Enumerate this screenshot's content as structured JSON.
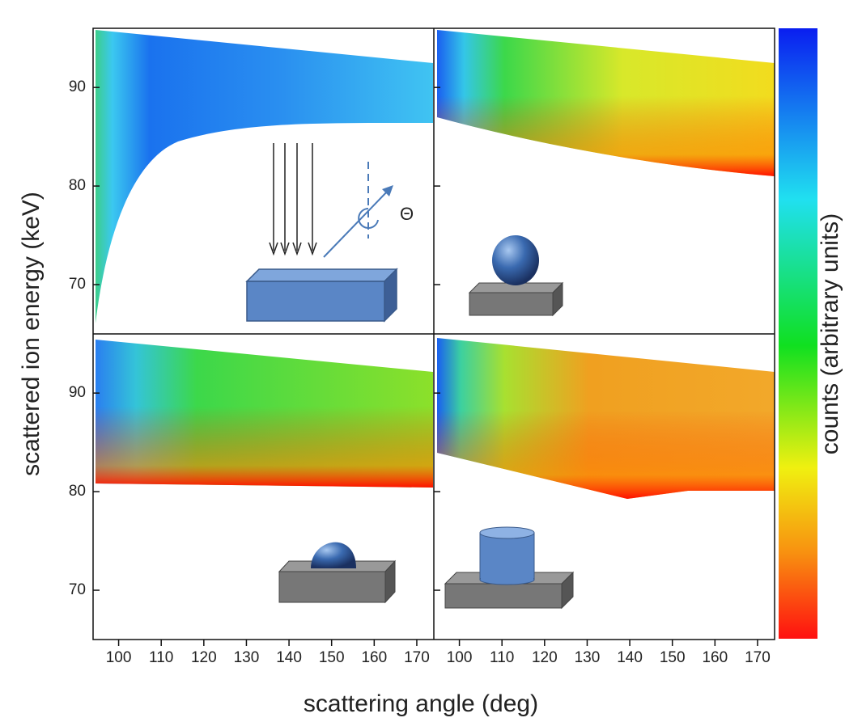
{
  "chart_data": {
    "type": "heatmap",
    "xlabel": "scattering angle (deg)",
    "ylabel": "scattered ion energy (keV)",
    "colorbar_label": "counts (arbitrary units)",
    "inset_label": "Θ",
    "xlim": [
      94,
      174
    ],
    "xticks": [
      100,
      110,
      120,
      130,
      140,
      150,
      160,
      170
    ],
    "ylim": [
      65,
      96
    ],
    "yticks": [
      70,
      80,
      90
    ]
  }
}
